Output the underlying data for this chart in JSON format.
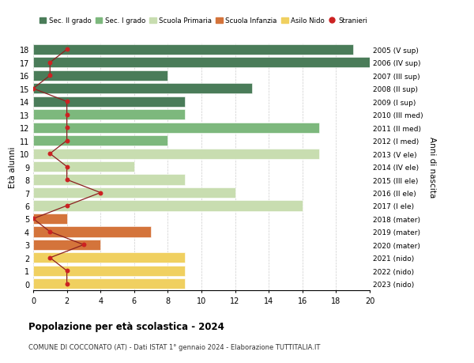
{
  "ages": [
    18,
    17,
    16,
    15,
    14,
    13,
    12,
    11,
    10,
    9,
    8,
    7,
    6,
    5,
    4,
    3,
    2,
    1,
    0
  ],
  "years": [
    "2005 (V sup)",
    "2006 (IV sup)",
    "2007 (III sup)",
    "2008 (II sup)",
    "2009 (I sup)",
    "2010 (III med)",
    "2011 (II med)",
    "2012 (I med)",
    "2013 (V ele)",
    "2014 (IV ele)",
    "2015 (III ele)",
    "2016 (II ele)",
    "2017 (I ele)",
    "2018 (mater)",
    "2019 (mater)",
    "2020 (mater)",
    "2021 (nido)",
    "2022 (nido)",
    "2023 (nido)"
  ],
  "bar_values": [
    19,
    20,
    8,
    13,
    9,
    9,
    17,
    8,
    17,
    6,
    9,
    12,
    16,
    2,
    7,
    4,
    9,
    9,
    9
  ],
  "bar_colors": [
    "#4a7c59",
    "#4a7c59",
    "#4a7c59",
    "#4a7c59",
    "#4a7c59",
    "#7db87d",
    "#7db87d",
    "#7db87d",
    "#c8ddb0",
    "#c8ddb0",
    "#c8ddb0",
    "#c8ddb0",
    "#c8ddb0",
    "#d4743b",
    "#d4743b",
    "#d4743b",
    "#f0d060",
    "#f0d060",
    "#f0d060"
  ],
  "stranieri_values": [
    2,
    1,
    1,
    0,
    2,
    2,
    2,
    2,
    1,
    2,
    2,
    4,
    2,
    0,
    1,
    3,
    1,
    2,
    2
  ],
  "legend_labels": [
    "Sec. II grado",
    "Sec. I grado",
    "Scuola Primaria",
    "Scuola Infanzia",
    "Asilo Nido",
    "Stranieri"
  ],
  "legend_colors": [
    "#4a7c59",
    "#7db87d",
    "#c8ddb0",
    "#d4743b",
    "#f0d060",
    "#b22222"
  ],
  "title": "Popolazione per età scolastica - 2024",
  "subtitle": "COMUNE DI COCCONATO (AT) - Dati ISTAT 1° gennaio 2024 - Elaborazione TUTTITALIA.IT",
  "ylabel_left": "Età alunni",
  "ylabel_right": "Anni di nascita",
  "xlim": [
    0,
    20
  ],
  "xticks": [
    0,
    2,
    4,
    6,
    8,
    10,
    12,
    14,
    16,
    18,
    20
  ],
  "bg_color": "#ffffff",
  "grid_color": "#cccccc",
  "bar_height": 0.8,
  "line_color": "#8b2020",
  "dot_color": "#cc2222"
}
